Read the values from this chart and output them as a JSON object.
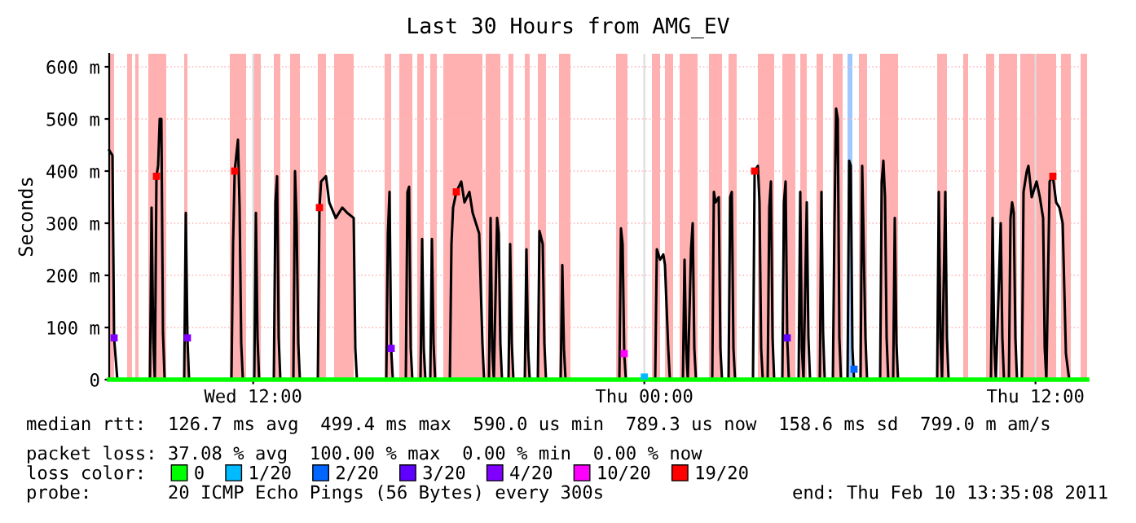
{
  "chart_data": {
    "type": "line",
    "title": "Last 30 Hours from AMG_EV",
    "ylabel": "Seconds",
    "xlim": [
      "2011-02-09T07:35",
      "2011-02-10T13:35"
    ],
    "xticks": [
      {
        "value": "2011-02-09T12:00",
        "label": "Wed 12:00"
      },
      {
        "value": "2011-02-10T00:00",
        "label": "Thu 00:00"
      },
      {
        "value": "2011-02-10T12:00",
        "label": "Thu 12:00"
      }
    ],
    "ylim": [
      0,
      625
    ],
    "yticks": [
      0,
      {
        "value": 100,
        "label": "100 m"
      },
      {
        "value": 200,
        "label": "200 m"
      },
      {
        "value": 300,
        "label": "300 m"
      },
      {
        "value": 400,
        "label": "400 m"
      },
      {
        "value": 500,
        "label": "500 m"
      },
      {
        "value": 600,
        "label": "600 m"
      }
    ],
    "grid": true,
    "legend": "bottom",
    "legend_title": "loss color:",
    "line_style": "solid",
    "annotations": [
      "median rtt:  126.7 ms avg  499.4 ms max  590.0 us min  789.3 us now  158.6 ms sd  799.0 m am/s",
      "packet loss: 37.08 % avg  100.00 % max  0.00 % min  0.00 % now",
      "probe:       20 ICMP Echo Pings (56 Bytes) every 300s",
      "end: Thu Feb 10 13:35:08 2011"
    ],
    "series": [
      {
        "color": "#000000",
        "x": [
          "2011-02-09T07:35",
          "2011-02-09T07:41",
          "2011-02-09T07:44",
          "2011-02-09T07:50",
          "2011-02-09T08:50",
          "2011-02-09T08:53",
          "2011-02-09T08:56",
          "2011-02-09T08:59",
          "2011-02-09T09:02",
          "2011-02-09T09:05",
          "2011-02-09T09:08",
          "2011-02-09T09:11",
          "2011-02-09T09:14",
          "2011-02-09T09:17",
          "2011-02-09T09:53",
          "2011-02-09T09:56",
          "2011-02-09T09:59",
          "2011-02-09T10:02",
          "2011-02-09T11:20",
          "2011-02-09T11:23",
          "2011-02-09T11:26",
          "2011-02-09T11:32",
          "2011-02-09T11:35",
          "2011-02-09T11:38",
          "2011-02-09T11:41",
          "2011-02-09T12:02",
          "2011-02-09T12:05",
          "2011-02-09T12:08",
          "2011-02-09T12:11",
          "2011-02-09T12:38",
          "2011-02-09T12:41",
          "2011-02-09T12:44",
          "2011-02-09T12:47",
          "2011-02-09T12:50",
          "2011-02-09T13:14",
          "2011-02-09T13:17",
          "2011-02-09T13:20",
          "2011-02-09T13:23",
          "2011-02-09T13:26",
          "2011-02-09T13:59",
          "2011-02-09T14:02",
          "2011-02-09T14:05",
          "2011-02-09T14:14",
          "2011-02-09T14:20",
          "2011-02-09T14:32",
          "2011-02-09T14:44",
          "2011-02-09T14:53",
          "2011-02-09T15:05",
          "2011-02-09T15:08",
          "2011-02-09T15:11",
          "2011-02-09T16:05",
          "2011-02-09T16:08",
          "2011-02-09T16:11",
          "2011-02-09T16:14",
          "2011-02-09T16:17",
          "2011-02-09T16:41",
          "2011-02-09T16:44",
          "2011-02-09T16:47",
          "2011-02-09T16:50",
          "2011-02-09T16:53",
          "2011-02-09T17:08",
          "2011-02-09T17:11",
          "2011-02-09T17:14",
          "2011-02-09T17:17",
          "2011-02-09T17:26",
          "2011-02-09T17:29",
          "2011-02-09T17:32",
          "2011-02-09T17:35",
          "2011-02-09T18:02",
          "2011-02-09T18:05",
          "2011-02-09T18:08",
          "2011-02-09T18:14",
          "2011-02-09T18:23",
          "2011-02-09T18:29",
          "2011-02-09T18:38",
          "2011-02-09T18:44",
          "2011-02-09T18:50",
          "2011-02-09T18:56",
          "2011-02-09T19:02",
          "2011-02-09T19:05",
          "2011-02-09T19:14",
          "2011-02-09T19:17",
          "2011-02-09T19:20",
          "2011-02-09T19:23",
          "2011-02-09T19:29",
          "2011-02-09T19:32",
          "2011-02-09T19:35",
          "2011-02-09T19:38",
          "2011-02-09T19:50",
          "2011-02-09T19:53",
          "2011-02-09T19:56",
          "2011-02-09T19:59",
          "2011-02-09T20:20",
          "2011-02-09T20:23",
          "2011-02-09T20:26",
          "2011-02-09T20:29",
          "2011-02-09T20:44",
          "2011-02-09T20:47",
          "2011-02-09T20:53",
          "2011-02-09T20:56",
          "2011-02-09T20:59",
          "2011-02-09T21:26",
          "2011-02-09T21:29",
          "2011-02-09T21:32",
          "2011-02-09T21:35",
          "2011-02-09T23:14",
          "2011-02-09T23:17",
          "2011-02-09T23:20",
          "2011-02-09T23:23",
          "2011-02-09T23:26",
          "2011-02-10T00:20",
          "2011-02-10T00:23",
          "2011-02-10T00:29",
          "2011-02-10T00:35",
          "2011-02-10T00:38",
          "2011-02-10T00:44",
          "2011-02-10T00:47",
          "2011-02-10T01:11",
          "2011-02-10T01:14",
          "2011-02-10T01:17",
          "2011-02-10T01:20",
          "2011-02-10T01:26",
          "2011-02-10T01:29",
          "2011-02-10T01:32",
          "2011-02-10T01:35",
          "2011-02-10T02:05",
          "2011-02-10T02:08",
          "2011-02-10T02:11",
          "2011-02-10T02:17",
          "2011-02-10T02:20",
          "2011-02-10T02:23",
          "2011-02-10T02:35",
          "2011-02-10T02:38",
          "2011-02-10T02:41",
          "2011-02-10T02:44",
          "2011-02-10T02:47",
          "2011-02-10T03:20",
          "2011-02-10T03:23",
          "2011-02-10T03:29",
          "2011-02-10T03:32",
          "2011-02-10T03:35",
          "2011-02-10T03:38",
          "2011-02-10T03:47",
          "2011-02-10T03:50",
          "2011-02-10T03:53",
          "2011-02-10T03:56",
          "2011-02-10T03:59",
          "2011-02-10T04:14",
          "2011-02-10T04:17",
          "2011-02-10T04:20",
          "2011-02-10T04:23",
          "2011-02-10T04:26",
          "2011-02-10T04:44",
          "2011-02-10T04:47",
          "2011-02-10T04:50",
          "2011-02-10T04:53",
          "2011-02-10T04:59",
          "2011-02-10T05:02",
          "2011-02-10T05:05",
          "2011-02-10T05:23",
          "2011-02-10T05:26",
          "2011-02-10T05:29",
          "2011-02-10T05:32",
          "2011-02-10T05:47",
          "2011-02-10T05:50",
          "2011-02-10T05:53",
          "2011-02-10T05:56",
          "2011-02-10T05:59",
          "2011-02-10T06:02",
          "2011-02-10T06:14",
          "2011-02-10T06:17",
          "2011-02-10T06:20",
          "2011-02-10T06:23",
          "2011-02-10T06:26",
          "2011-02-10T06:38",
          "2011-02-10T06:41",
          "2011-02-10T06:47",
          "2011-02-10T06:50",
          "2011-02-10T07:14",
          "2011-02-10T07:17",
          "2011-02-10T07:20",
          "2011-02-10T07:23",
          "2011-02-10T07:26",
          "2011-02-10T07:29",
          "2011-02-10T07:38",
          "2011-02-10T07:41",
          "2011-02-10T07:44",
          "2011-02-10T07:47",
          "2011-02-10T08:59",
          "2011-02-10T09:02",
          "2011-02-10T09:05",
          "2011-02-10T09:08",
          "2011-02-10T09:14",
          "2011-02-10T09:17",
          "2011-02-10T09:20",
          "2011-02-10T10:38",
          "2011-02-10T10:41",
          "2011-02-10T10:44",
          "2011-02-10T10:47",
          "2011-02-10T10:56",
          "2011-02-10T10:59",
          "2011-02-10T11:02",
          "2011-02-10T11:11",
          "2011-02-10T11:14",
          "2011-02-10T11:17",
          "2011-02-10T11:20",
          "2011-02-10T11:23",
          "2011-02-10T11:26",
          "2011-02-10T11:35",
          "2011-02-10T11:38",
          "2011-02-10T11:44",
          "2011-02-10T11:47",
          "2011-02-10T11:53",
          "2011-02-10T12:02",
          "2011-02-10T12:08",
          "2011-02-10T12:14",
          "2011-02-10T12:17",
          "2011-02-10T12:20",
          "2011-02-10T12:26",
          "2011-02-10T12:32",
          "2011-02-10T12:38",
          "2011-02-10T12:44",
          "2011-02-10T12:50",
          "2011-02-10T12:56",
          "2011-02-10T13:02",
          "2011-02-10T13:35"
        ],
        "values": [
          440,
          430,
          80,
          0,
          0,
          330,
          80,
          0,
          390,
          410,
          500,
          500,
          90,
          0,
          0,
          320,
          80,
          0,
          0,
          260,
          400,
          460,
          330,
          70,
          0,
          0,
          320,
          80,
          0,
          0,
          340,
          390,
          80,
          0,
          0,
          400,
          300,
          70,
          0,
          0,
          330,
          380,
          390,
          340,
          310,
          330,
          320,
          310,
          60,
          0,
          0,
          280,
          360,
          60,
          0,
          0,
          360,
          370,
          60,
          0,
          0,
          270,
          60,
          0,
          0,
          270,
          70,
          0,
          0,
          260,
          330,
          360,
          380,
          340,
          360,
          320,
          300,
          280,
          70,
          0,
          0,
          310,
          60,
          0,
          310,
          280,
          70,
          0,
          0,
          260,
          70,
          0,
          0,
          250,
          60,
          0,
          0,
          285,
          260,
          70,
          0,
          0,
          220,
          60,
          0,
          0,
          290,
          260,
          50,
          0,
          0,
          250,
          230,
          240,
          220,
          60,
          0,
          0,
          230,
          60,
          0,
          250,
          300,
          60,
          0,
          0,
          360,
          340,
          350,
          60,
          0,
          0,
          350,
          360,
          60,
          0,
          0,
          400,
          410,
          340,
          60,
          0,
          0,
          330,
          380,
          80,
          0,
          0,
          340,
          380,
          80,
          0,
          0,
          360,
          60,
          0,
          340,
          80,
          0,
          0,
          360,
          90,
          0,
          0,
          300,
          520,
          500,
          80,
          0,
          0,
          420,
          410,
          60,
          0,
          0,
          410,
          80,
          0,
          0,
          380,
          420,
          350,
          80,
          0,
          0,
          310,
          70,
          0,
          0,
          360,
          80,
          0,
          360,
          80,
          0,
          0,
          310,
          70,
          0,
          300,
          80,
          0,
          0,
          310,
          340,
          320,
          80,
          0,
          0,
          360,
          400,
          410,
          350,
          380,
          350,
          310,
          60,
          0,
          380,
          390,
          340,
          330,
          300,
          50,
          0,
          0
        ]
      },
      {
        "type": "line",
        "name": "0",
        "color": "#00ff00",
        "x": [
          "2011-02-09T07:35",
          "2011-02-10T13:35"
        ],
        "values": [
          0,
          0
        ]
      },
      {
        "type": "scatter",
        "name": "1/20",
        "color": "#00bbff",
        "x": [
          "2011-02-10T00:00"
        ],
        "values": [
          5
        ]
      },
      {
        "type": "scatter",
        "name": "2/20",
        "color": "#0066ff",
        "x": [
          "2011-02-10T06:26"
        ],
        "values": [
          20
        ]
      },
      {
        "type": "scatter",
        "name": "3/20",
        "color": "#6000ff",
        "x": [
          "2011-02-10T04:23"
        ],
        "values": [
          80
        ]
      },
      {
        "type": "scatter",
        "name": "4/20",
        "color": "#8000ff",
        "x": [
          "2011-02-09T07:44",
          "2011-02-09T09:59",
          "2011-02-09T16:14"
        ],
        "values": [
          80,
          80,
          60
        ]
      },
      {
        "type": "scatter",
        "name": "10/20",
        "color": "#ff00ff",
        "x": [
          "2011-02-09T23:23"
        ],
        "values": [
          50
        ]
      },
      {
        "type": "scatter",
        "name": "19/20",
        "color": "#ff0000",
        "x": [
          "2011-02-09T09:02",
          "2011-02-09T11:26",
          "2011-02-09T14:02",
          "2011-02-09T18:14",
          "2011-02-10T03:23",
          "2011-02-10T12:32"
        ],
        "values": [
          390,
          400,
          330,
          360,
          400,
          390
        ]
      }
    ],
    "bands": [
      {
        "axis": "x",
        "from": "2011-02-09T07:35",
        "to": "2011-02-09T07:44",
        "color": "#ffb0b0"
      },
      {
        "axis": "x",
        "from": "2011-02-09T08:08",
        "to": "2011-02-09T08:17",
        "color": "#ffb0b0"
      },
      {
        "axis": "x",
        "from": "2011-02-09T08:23",
        "to": "2011-02-09T08:29",
        "color": "#ffb0b0"
      },
      {
        "axis": "x",
        "from": "2011-02-09T08:47",
        "to": "2011-02-09T09:20",
        "color": "#ffb0b0"
      },
      {
        "axis": "x",
        "from": "2011-02-09T09:53",
        "to": "2011-02-09T09:59",
        "color": "#ffb0b0"
      },
      {
        "axis": "x",
        "from": "2011-02-09T11:17",
        "to": "2011-02-09T11:47",
        "color": "#ffb0b0"
      },
      {
        "axis": "x",
        "from": "2011-02-09T11:59",
        "to": "2011-02-09T12:14",
        "color": "#ffb0b0"
      },
      {
        "axis": "x",
        "from": "2011-02-09T12:38",
        "to": "2011-02-09T12:50",
        "color": "#ffb0b0"
      },
      {
        "axis": "x",
        "from": "2011-02-09T13:08",
        "to": "2011-02-09T13:26",
        "color": "#ffb0b0"
      },
      {
        "axis": "x",
        "from": "2011-02-09T13:59",
        "to": "2011-02-09T14:14",
        "color": "#ffb0b0"
      },
      {
        "axis": "x",
        "from": "2011-02-09T14:29",
        "to": "2011-02-09T15:05",
        "color": "#ffb0b0"
      },
      {
        "axis": "x",
        "from": "2011-02-09T16:02",
        "to": "2011-02-09T16:14",
        "color": "#ffb0b0"
      },
      {
        "axis": "x",
        "from": "2011-02-09T16:29",
        "to": "2011-02-09T16:53",
        "color": "#ffb0b0"
      },
      {
        "axis": "x",
        "from": "2011-02-09T17:02",
        "to": "2011-02-09T17:14",
        "color": "#ffb0b0"
      },
      {
        "axis": "x",
        "from": "2011-02-09T17:26",
        "to": "2011-02-09T17:38",
        "color": "#ffb0b0"
      },
      {
        "axis": "x",
        "from": "2011-02-09T17:50",
        "to": "2011-02-09T19:02",
        "color": "#ffb0b0"
      },
      {
        "axis": "x",
        "from": "2011-02-09T19:08",
        "to": "2011-02-09T19:35",
        "color": "#ffb0b0"
      },
      {
        "axis": "x",
        "from": "2011-02-09T19:50",
        "to": "2011-02-09T19:59",
        "color": "#ffb0b0"
      },
      {
        "axis": "x",
        "from": "2011-02-09T20:20",
        "to": "2011-02-09T20:29",
        "color": "#ffb0b0"
      },
      {
        "axis": "x",
        "from": "2011-02-09T20:44",
        "to": "2011-02-09T20:59",
        "color": "#ffb0b0"
      },
      {
        "axis": "x",
        "from": "2011-02-09T21:23",
        "to": "2011-02-09T21:44",
        "color": "#ffb0b0"
      },
      {
        "axis": "x",
        "from": "2011-02-09T23:08",
        "to": "2011-02-09T23:29",
        "color": "#ffb0b0"
      },
      {
        "axis": "x",
        "from": "2011-02-10T00:14",
        "to": "2011-02-10T00:29",
        "color": "#ffb0b0"
      },
      {
        "axis": "x",
        "from": "2011-02-10T00:38",
        "to": "2011-02-10T00:53",
        "color": "#ffb0b0"
      },
      {
        "axis": "x",
        "from": "2011-02-10T01:05",
        "to": "2011-02-10T01:38",
        "color": "#ffb0b0"
      },
      {
        "axis": "x",
        "from": "2011-02-10T01:59",
        "to": "2011-02-10T02:23",
        "color": "#ffb0b0"
      },
      {
        "axis": "x",
        "from": "2011-02-10T02:35",
        "to": "2011-02-10T02:50",
        "color": "#ffb0b0"
      },
      {
        "axis": "x",
        "from": "2011-02-10T03:29",
        "to": "2011-02-10T03:59",
        "color": "#ffb0b0"
      },
      {
        "axis": "x",
        "from": "2011-02-10T04:14",
        "to": "2011-02-10T04:38",
        "color": "#ffb0b0"
      },
      {
        "axis": "x",
        "from": "2011-02-10T04:47",
        "to": "2011-02-10T04:59",
        "color": "#ffb0b0"
      },
      {
        "axis": "x",
        "from": "2011-02-10T05:17",
        "to": "2011-02-10T05:29",
        "color": "#ffb0b0"
      },
      {
        "axis": "x",
        "from": "2011-02-10T05:47",
        "to": "2011-02-10T06:05",
        "color": "#ffb0b0"
      },
      {
        "axis": "x",
        "from": "2011-02-10T06:14",
        "to": "2011-02-10T06:23",
        "color": "#a0c8ff"
      },
      {
        "axis": "x",
        "from": "2011-02-10T06:35",
        "to": "2011-02-10T06:50",
        "color": "#ffb0b0"
      },
      {
        "axis": "x",
        "from": "2011-02-10T07:14",
        "to": "2011-02-10T07:47",
        "color": "#ffb0b0"
      },
      {
        "axis": "x",
        "from": "2011-02-10T08:59",
        "to": "2011-02-10T09:17",
        "color": "#ffb0b0"
      },
      {
        "axis": "x",
        "from": "2011-02-10T09:47",
        "to": "2011-02-10T09:56",
        "color": "#ffb0b0"
      },
      {
        "axis": "x",
        "from": "2011-02-10T10:29",
        "to": "2011-02-10T10:44",
        "color": "#ffb0b0"
      },
      {
        "axis": "x",
        "from": "2011-02-10T10:53",
        "to": "2011-02-10T11:26",
        "color": "#ffb0b0"
      },
      {
        "axis": "x",
        "from": "2011-02-10T11:32",
        "to": "2011-02-10T12:38",
        "color": "#ffb0b0"
      },
      {
        "axis": "x",
        "from": "2011-02-10T12:47",
        "to": "2011-02-10T13:05",
        "color": "#ffb0b0"
      },
      {
        "axis": "x",
        "from": "2011-02-10T13:23",
        "to": "2011-02-10T13:35",
        "color": "#ffb0b0"
      }
    ]
  }
}
